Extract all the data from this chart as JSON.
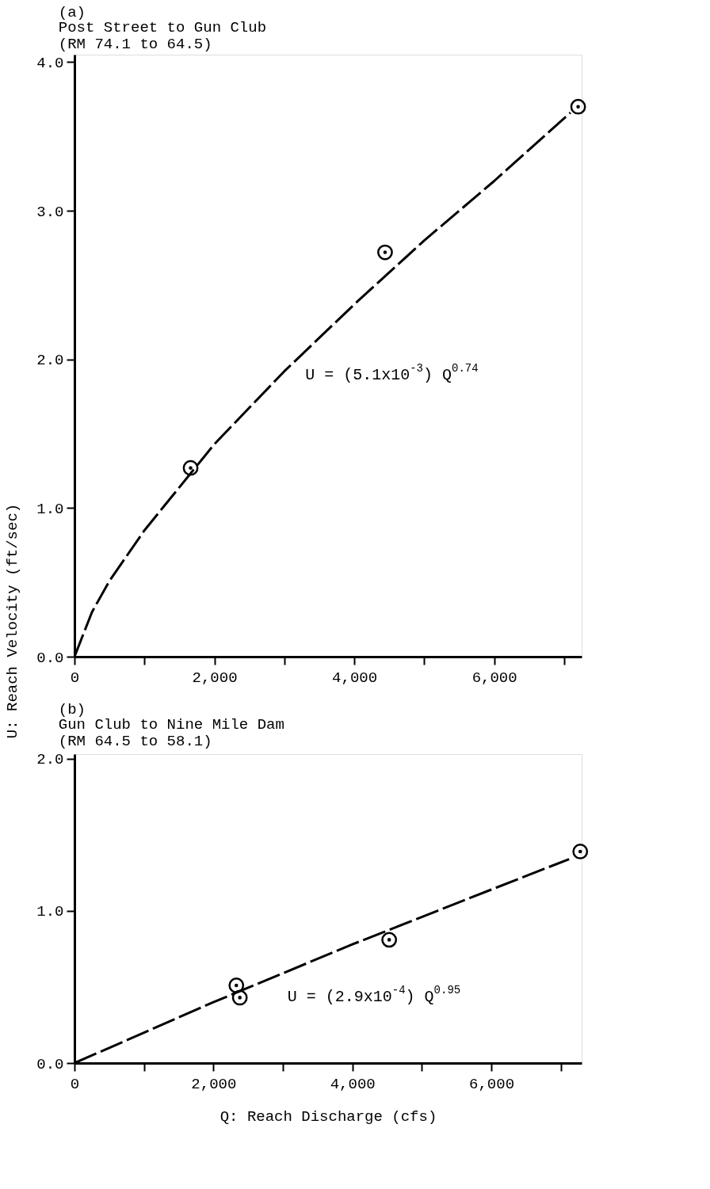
{
  "chart_data": [
    {
      "type": "scatter",
      "title": "(a)",
      "subtitle": [
        "Post Street to Gun Club",
        "   (RM 74.1 to 64.5)"
      ],
      "ylabel": "U:  Reach Velocity (ft/sec)",
      "xlim": [
        0,
        7250
      ],
      "ylim": [
        0,
        4.05
      ],
      "xticks": [
        0,
        {
          "value": 1000,
          "label": null
        },
        {
          "value": 2000,
          "label": "2,000"
        },
        {
          "value": 3000,
          "label": null
        },
        {
          "value": 4000,
          "label": "4,000"
        },
        {
          "value": 5000,
          "label": null
        },
        {
          "value": 6000,
          "label": "6,000"
        },
        {
          "value": 7000,
          "label": null
        }
      ],
      "yticks": [
        {
          "value": 0,
          "label": "0.0"
        },
        {
          "value": 1,
          "label": "1.0"
        },
        {
          "value": 2,
          "label": "2.0"
        },
        {
          "value": 3,
          "label": "3.0"
        },
        {
          "value": 4,
          "label": "4.0"
        }
      ],
      "grid": false,
      "marker": "circle",
      "annotations": [
        "U = (5.1x10$^{-3}$) Q$^{0.74}$"
      ],
      "series": [
        {
          "type": "line",
          "marker": "none",
          "line_style": "dashed",
          "color": "#000000",
          "x": [
            0,
            250,
            500,
            1000,
            2000,
            3000,
            4000,
            5000,
            6000,
            7090
          ],
          "values": [
            0,
            0.3,
            0.51,
            0.85,
            1.43,
            1.92,
            2.37,
            2.8,
            3.2,
            3.66
          ]
        },
        {
          "color": "#000000",
          "x": [
            1660,
            4440,
            7200
          ],
          "values": [
            1.27,
            2.72,
            3.7
          ]
        }
      ]
    },
    {
      "type": "scatter",
      "title": "(b)",
      "subtitle": [
        "Gun Club to Nine Mile Dam",
        "   (RM 64.5 to 58.1)"
      ],
      "xlabel": "Q: Reach Discharge (cfs)",
      "xlim": [
        0,
        7300
      ],
      "ylim": [
        0,
        2.03
      ],
      "xticks": [
        0,
        {
          "value": 1000,
          "label": null
        },
        {
          "value": 2000,
          "label": "2,000"
        },
        {
          "value": 3000,
          "label": null
        },
        {
          "value": 4000,
          "label": "4,000"
        },
        {
          "value": 5000,
          "label": null
        },
        {
          "value": 6000,
          "label": "6,000"
        },
        {
          "value": 7000,
          "label": null
        }
      ],
      "yticks": [
        {
          "value": 0,
          "label": "0.0"
        },
        {
          "value": 1,
          "label": "1.0"
        },
        {
          "value": 2,
          "label": "2.0"
        }
      ],
      "grid": false,
      "marker": "circle",
      "annotations": [
        "U = (2.9x10$^{-4}$) Q$^{0.95}$"
      ],
      "series": [
        {
          "type": "line",
          "marker": "none",
          "line_style": "dashed",
          "color": "#000000",
          "x": [
            0,
            1000,
            2000,
            3000,
            4000,
            5000,
            6000,
            7120
          ],
          "values": [
            0,
            0.2,
            0.4,
            0.59,
            0.78,
            0.96,
            1.14,
            1.34
          ]
        },
        {
          "color": "#000000",
          "x": [
            2330,
            2380,
            4530,
            7280
          ],
          "values": [
            0.51,
            0.43,
            0.81,
            1.39
          ]
        }
      ]
    }
  ]
}
